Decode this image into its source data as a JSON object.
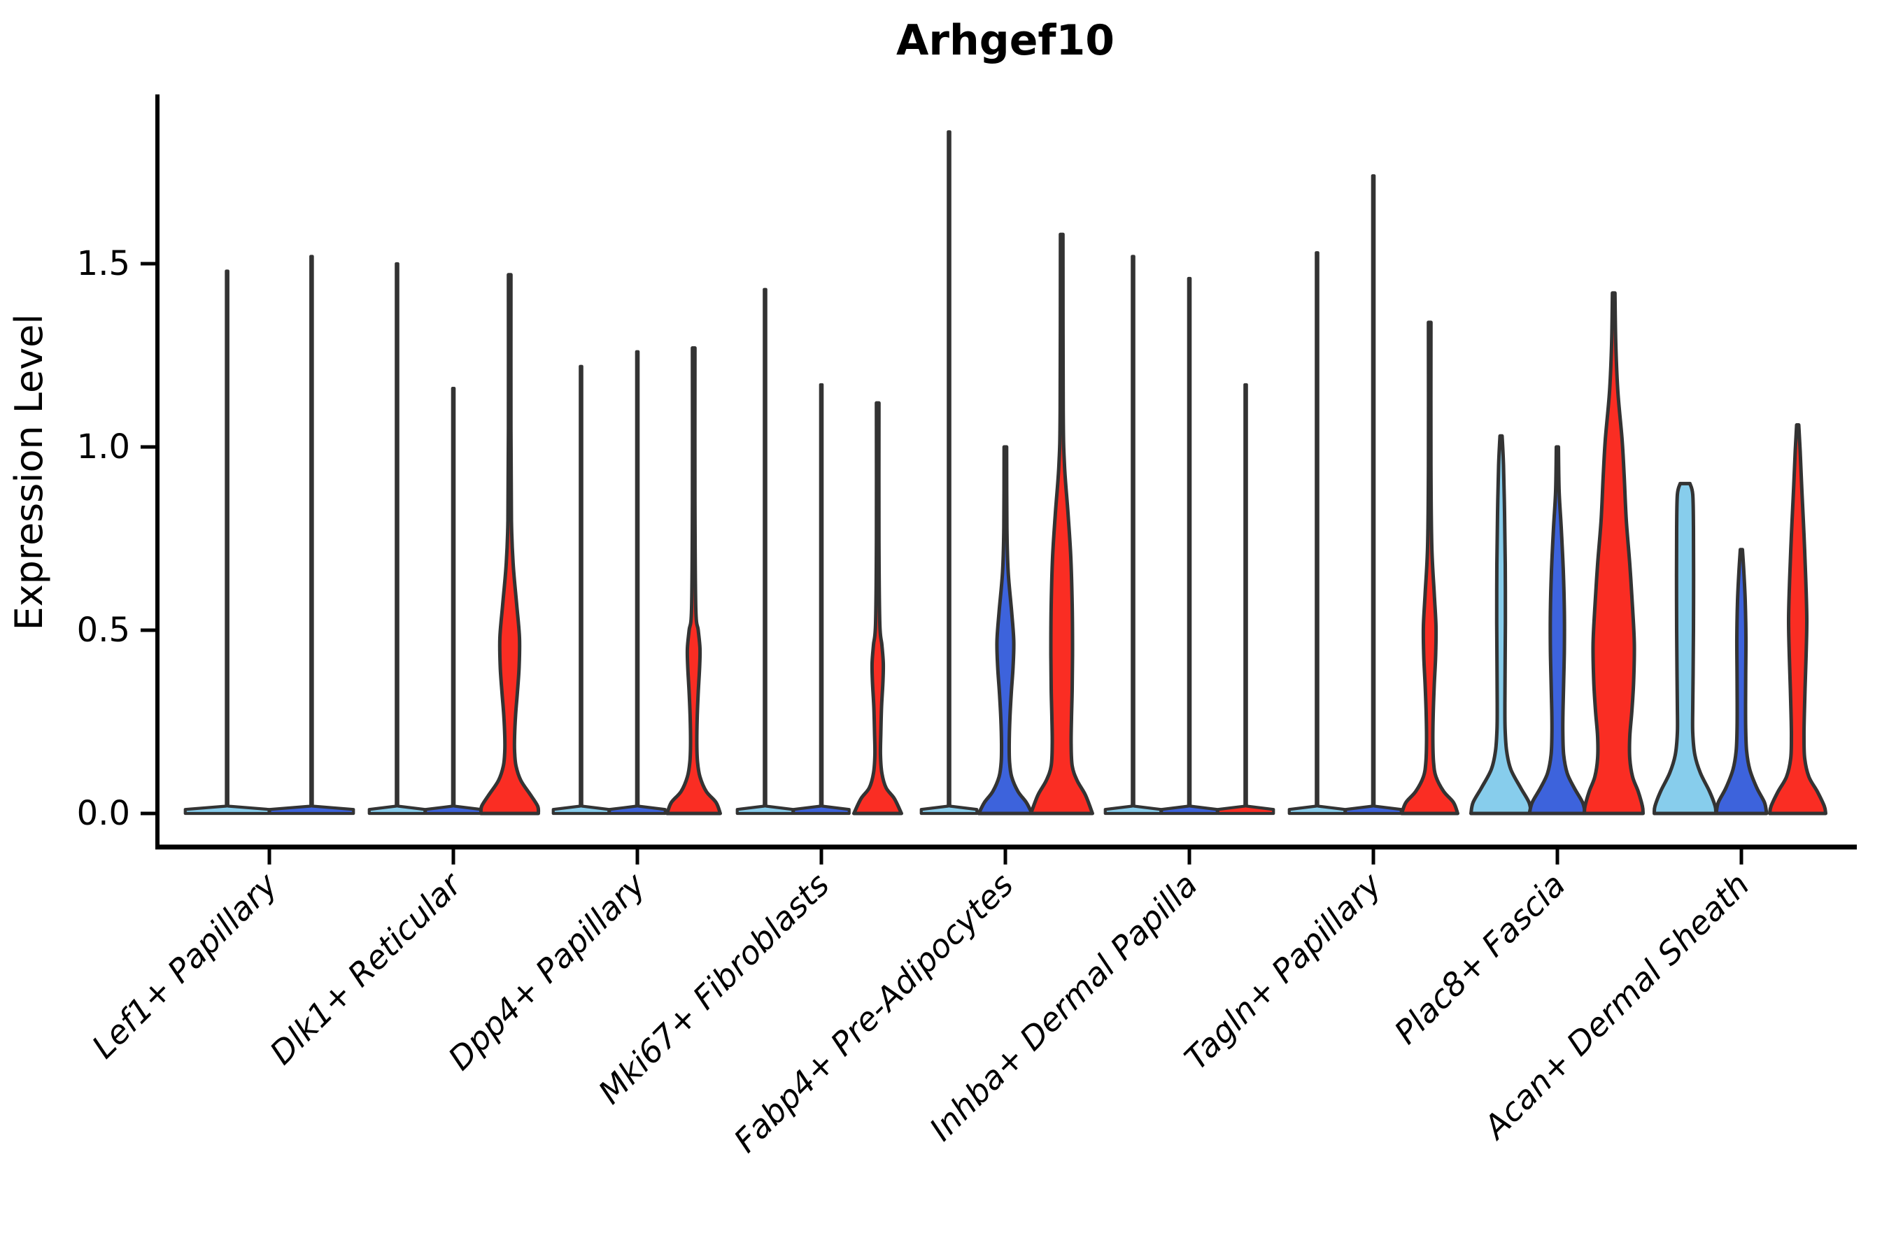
{
  "title": "Arhgef10",
  "y_axis": {
    "label": "Expression Level",
    "ticks": [
      "0.0",
      "0.5",
      "1.0",
      "1.5"
    ],
    "tick_values": [
      0.0,
      0.5,
      1.0,
      1.5
    ],
    "ylim": [
      0,
      1.96
    ]
  },
  "x_axis": {
    "categories": [
      "Lef1+ Papillary",
      "Dlk1+ Reticular",
      "Dpp4+ Papillary",
      "Mki67+ Fibroblasts",
      "Fabp4+ Pre-Adipocytes",
      "Inhba+ Dermal Papilla",
      "Tagln+ Papillary",
      "Plac8+ Fascia",
      "Acan+ Dermal Sheath"
    ]
  },
  "chart_data": {
    "type": "violin",
    "title": "Arhgef10",
    "xlabel": "",
    "ylabel": "Expression Level",
    "ylim": [
      0,
      1.96
    ],
    "grid": false,
    "legend": "none",
    "split_colors": {
      "light_blue": "#87CDEC",
      "blue": "#3D63DC",
      "red": "#FA2D23"
    },
    "stroke_color": "#333333",
    "categories": [
      "Lef1+ Papillary",
      "Dlk1+ Reticular",
      "Dpp4+ Papillary",
      "Mki67+ Fibroblasts",
      "Fabp4+ Pre-Adipocytes",
      "Inhba+ Dermal Papilla",
      "Tagln+ Papillary",
      "Plac8+ Fascia",
      "Acan+ Dermal Sheath"
    ],
    "groups": [
      {
        "category": "Lef1+ Papillary",
        "violins": [
          {
            "split": 1,
            "color": "#87CDEC",
            "type": "spike",
            "max": 1.48
          },
          {
            "split": 2,
            "color": "#3D63DC",
            "type": "spike",
            "max": 1.52
          }
        ]
      },
      {
        "category": "Dlk1+ Reticular",
        "violins": [
          {
            "split": 1,
            "color": "#87CDEC",
            "type": "spike",
            "max": 1.5
          },
          {
            "split": 2,
            "color": "#3D63DC",
            "type": "spike",
            "max": 1.16
          },
          {
            "split": 3,
            "color": "#FA2D23",
            "type": "shaped",
            "max": 1.47,
            "profile": [
              [
                1.47,
                1.8
              ],
              [
                1.05,
                1.8
              ],
              [
                0.8,
                2.5
              ],
              [
                0.68,
                5
              ],
              [
                0.57,
                10
              ],
              [
                0.48,
                14
              ],
              [
                0.4,
                13.5
              ],
              [
                0.33,
                11
              ],
              [
                0.27,
                8.5
              ],
              [
                0.21,
                7
              ],
              [
                0.17,
                7
              ],
              [
                0.13,
                9
              ],
              [
                0.09,
                16
              ],
              [
                0.05,
                30
              ],
              [
                0.02,
                40
              ],
              [
                0,
                41
              ]
            ]
          }
        ]
      },
      {
        "category": "Dpp4+ Papillary",
        "violins": [
          {
            "split": 1,
            "color": "#87CDEC",
            "type": "spike",
            "max": 1.22
          },
          {
            "split": 2,
            "color": "#3D63DC",
            "type": "spike",
            "max": 1.26
          },
          {
            "split": 3,
            "color": "#FA2D23",
            "type": "shaped",
            "max": 1.27,
            "profile": [
              [
                1.27,
                1.8
              ],
              [
                0.85,
                1.8
              ],
              [
                0.56,
                3
              ],
              [
                0.5,
                6.5
              ],
              [
                0.45,
                9
              ],
              [
                0.4,
                8.5
              ],
              [
                0.33,
                6.5
              ],
              [
                0.26,
                5
              ],
              [
                0.19,
                4.5
              ],
              [
                0.14,
                5.5
              ],
              [
                0.1,
                9
              ],
              [
                0.06,
                18
              ],
              [
                0.03,
                32
              ],
              [
                0,
                38
              ]
            ]
          }
        ]
      },
      {
        "category": "Mki67+ Fibroblasts",
        "violins": [
          {
            "split": 1,
            "color": "#87CDEC",
            "type": "spike",
            "max": 1.43
          },
          {
            "split": 2,
            "color": "#3D63DC",
            "type": "spike",
            "max": 1.17
          },
          {
            "split": 3,
            "color": "#FA2D23",
            "type": "shaped",
            "max": 1.12,
            "profile": [
              [
                1.12,
                1.8
              ],
              [
                0.75,
                1.8
              ],
              [
                0.52,
                3
              ],
              [
                0.46,
                6
              ],
              [
                0.41,
                8
              ],
              [
                0.36,
                7.5
              ],
              [
                0.29,
                5.5
              ],
              [
                0.22,
                4.5
              ],
              [
                0.16,
                4
              ],
              [
                0.11,
                6
              ],
              [
                0.07,
                12
              ],
              [
                0.04,
                24
              ],
              [
                0,
                34
              ]
            ]
          }
        ]
      },
      {
        "category": "Fabp4+ Pre-Adipocytes",
        "violins": [
          {
            "split": 1,
            "color": "#87CDEC",
            "type": "spike",
            "max": 1.86
          },
          {
            "split": 2,
            "color": "#3D63DC",
            "type": "shaped",
            "max": 1.0,
            "profile": [
              [
                1.0,
                1.8
              ],
              [
                0.78,
                2.2
              ],
              [
                0.66,
                4
              ],
              [
                0.55,
                9
              ],
              [
                0.47,
                12
              ],
              [
                0.4,
                11
              ],
              [
                0.33,
                8.5
              ],
              [
                0.26,
                6.5
              ],
              [
                0.19,
                5.5
              ],
              [
                0.14,
                6
              ],
              [
                0.1,
                9
              ],
              [
                0.06,
                18
              ],
              [
                0.03,
                30
              ],
              [
                0,
                38
              ]
            ]
          },
          {
            "split": 3,
            "color": "#FA2D23",
            "type": "shaped",
            "max": 1.58,
            "profile": [
              [
                1.58,
                1.8
              ],
              [
                1.1,
                2.2
              ],
              [
                0.95,
                4
              ],
              [
                0.82,
                9
              ],
              [
                0.7,
                13
              ],
              [
                0.57,
                15
              ],
              [
                0.45,
                15.5
              ],
              [
                0.34,
                15
              ],
              [
                0.26,
                14
              ],
              [
                0.19,
                13.5
              ],
              [
                0.13,
                15
              ],
              [
                0.09,
                22
              ],
              [
                0.05,
                34
              ],
              [
                0,
                44
              ]
            ]
          }
        ]
      },
      {
        "category": "Inhba+ Dermal Papilla",
        "violins": [
          {
            "split": 1,
            "color": "#87CDEC",
            "type": "spike",
            "max": 1.52
          },
          {
            "split": 2,
            "color": "#3D63DC",
            "type": "spike",
            "max": 1.46
          },
          {
            "split": 3,
            "color": "#FA2D23",
            "type": "spike",
            "max": 1.17
          }
        ]
      },
      {
        "category": "Tagln+ Papillary",
        "violins": [
          {
            "split": 1,
            "color": "#87CDEC",
            "type": "spike",
            "max": 1.53
          },
          {
            "split": 2,
            "color": "#3D63DC",
            "type": "spike",
            "max": 1.74
          },
          {
            "split": 3,
            "color": "#FA2D23",
            "type": "shaped",
            "max": 1.34,
            "profile": [
              [
                1.34,
                1.8
              ],
              [
                0.95,
                1.8
              ],
              [
                0.73,
                3
              ],
              [
                0.6,
                6.5
              ],
              [
                0.51,
                9
              ],
              [
                0.43,
                8.5
              ],
              [
                0.35,
                6.5
              ],
              [
                0.27,
                5
              ],
              [
                0.2,
                4.5
              ],
              [
                0.14,
                5.5
              ],
              [
                0.1,
                9
              ],
              [
                0.06,
                20
              ],
              [
                0.03,
                34
              ],
              [
                0,
                40
              ]
            ]
          }
        ]
      },
      {
        "category": "Plac8+ Fascia",
        "violins": [
          {
            "split": 1,
            "color": "#87CDEC",
            "type": "shaped",
            "max": 1.03,
            "profile": [
              [
                1.03,
                1.5
              ],
              [
                0.95,
                3.5
              ],
              [
                0.82,
                5
              ],
              [
                0.68,
                6
              ],
              [
                0.52,
                6.2
              ],
              [
                0.4,
                5.8
              ],
              [
                0.3,
                5.5
              ],
              [
                0.23,
                5.8
              ],
              [
                0.17,
                8
              ],
              [
                0.12,
                14
              ],
              [
                0.07,
                28
              ],
              [
                0.03,
                40
              ],
              [
                0,
                43
              ]
            ]
          },
          {
            "split": 2,
            "color": "#3D63DC",
            "type": "shaped",
            "max": 1.0,
            "profile": [
              [
                1.0,
                1.5
              ],
              [
                0.88,
                2.5
              ],
              [
                0.78,
                5.5
              ],
              [
                0.66,
                8.5
              ],
              [
                0.55,
                10
              ],
              [
                0.45,
                10
              ],
              [
                0.36,
                9
              ],
              [
                0.28,
                8
              ],
              [
                0.22,
                7.8
              ],
              [
                0.16,
                9
              ],
              [
                0.11,
                14
              ],
              [
                0.07,
                24
              ],
              [
                0.03,
                36
              ],
              [
                0,
                40
              ]
            ]
          },
          {
            "split": 3,
            "color": "#FA2D23",
            "type": "shaped",
            "max": 1.42,
            "profile": [
              [
                1.42,
                1.8
              ],
              [
                1.28,
                3
              ],
              [
                1.15,
                6
              ],
              [
                1.02,
                12
              ],
              [
                0.92,
                15
              ],
              [
                0.8,
                18
              ],
              [
                0.68,
                23
              ],
              [
                0.56,
                27
              ],
              [
                0.46,
                29.5
              ],
              [
                0.36,
                28.5
              ],
              [
                0.28,
                26
              ],
              [
                0.21,
                23
              ],
              [
                0.15,
                23
              ],
              [
                0.1,
                27
              ],
              [
                0.06,
                35
              ],
              [
                0.02,
                41
              ],
              [
                0,
                42
              ]
            ]
          }
        ]
      },
      {
        "category": "Acan+ Dermal Sheath",
        "violins": [
          {
            "split": 1,
            "color": "#87CDEC",
            "type": "shaped",
            "max": 0.9,
            "profile": [
              [
                0.9,
                7
              ],
              [
                0.87,
                11
              ],
              [
                0.78,
                12
              ],
              [
                0.65,
                12.2
              ],
              [
                0.5,
                12
              ],
              [
                0.38,
                11.5
              ],
              [
                0.29,
                11
              ],
              [
                0.22,
                11
              ],
              [
                0.16,
                14
              ],
              [
                0.11,
                22
              ],
              [
                0.06,
                35
              ],
              [
                0.02,
                43
              ],
              [
                0,
                44
              ]
            ]
          },
          {
            "split": 2,
            "color": "#3D63DC",
            "type": "shaped",
            "max": 0.72,
            "profile": [
              [
                0.72,
                1.5
              ],
              [
                0.66,
                3.5
              ],
              [
                0.58,
                5.5
              ],
              [
                0.48,
                6.5
              ],
              [
                0.38,
                6.2
              ],
              [
                0.3,
                6
              ],
              [
                0.23,
                6.2
              ],
              [
                0.17,
                7.5
              ],
              [
                0.12,
                12
              ],
              [
                0.07,
                22
              ],
              [
                0.03,
                33
              ],
              [
                0,
                36
              ]
            ]
          },
          {
            "split": 3,
            "color": "#FA2D23",
            "type": "shaped",
            "max": 1.06,
            "profile": [
              [
                1.06,
                1.5
              ],
              [
                0.99,
                3.5
              ],
              [
                0.88,
                6
              ],
              [
                0.76,
                9
              ],
              [
                0.64,
                11.5
              ],
              [
                0.53,
                13
              ],
              [
                0.43,
                12
              ],
              [
                0.34,
                10.5
              ],
              [
                0.27,
                9.5
              ],
              [
                0.21,
                9
              ],
              [
                0.15,
                10
              ],
              [
                0.1,
                16
              ],
              [
                0.06,
                28
              ],
              [
                0.02,
                38
              ],
              [
                0,
                40
              ]
            ]
          }
        ]
      }
    ]
  }
}
